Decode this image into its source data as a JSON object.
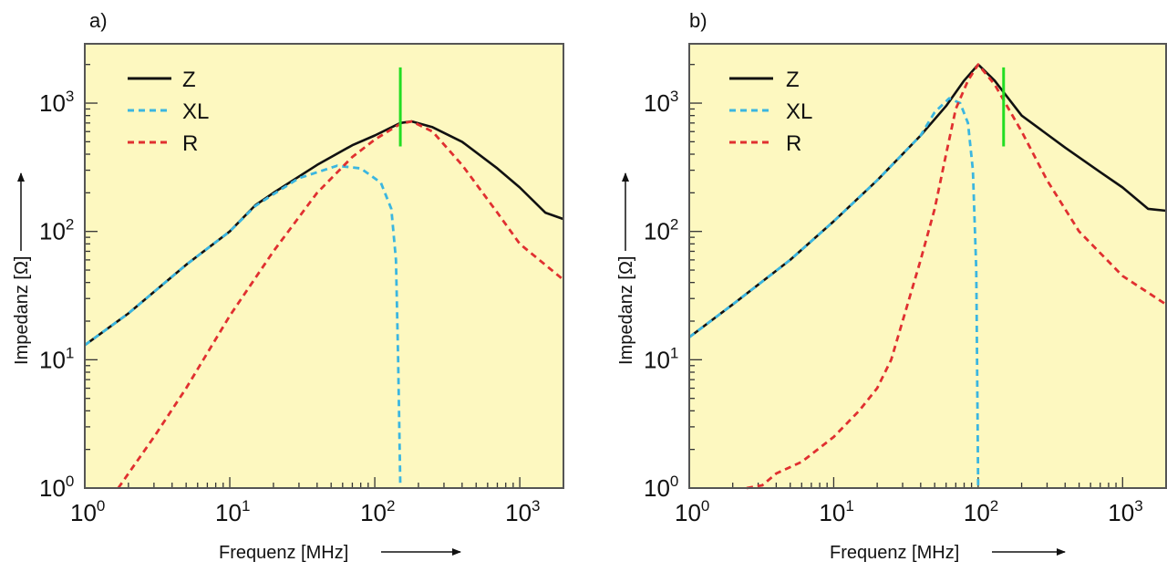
{
  "chart_data": [
    {
      "type": "line",
      "panel_label": "a)",
      "title": "",
      "xlabel": "Frequenz [MHz]",
      "ylabel": "Impedanz [Ω]",
      "xscale": "log",
      "yscale": "log",
      "xlim": [
        1,
        2000
      ],
      "ylim": [
        1,
        2900
      ],
      "xticks": [
        1,
        10,
        100,
        1000
      ],
      "xtick_labels": [
        {
          "base": "10",
          "exp": "0"
        },
        {
          "base": "10",
          "exp": "1"
        },
        {
          "base": "10",
          "exp": "2"
        },
        {
          "base": "10",
          "exp": "3"
        }
      ],
      "yticks": [
        1,
        10,
        100,
        1000
      ],
      "ytick_labels": [
        {
          "base": "10",
          "exp": "0"
        },
        {
          "base": "10",
          "exp": "1"
        },
        {
          "base": "10",
          "exp": "2"
        },
        {
          "base": "10",
          "exp": "3"
        }
      ],
      "background": "#fdf8c0",
      "legend": {
        "position": "top-left",
        "entries": [
          "Z",
          "XL",
          "R"
        ]
      },
      "series": [
        {
          "name": "Z",
          "style": "solid",
          "color": "#111111",
          "x": [
            1,
            2,
            5,
            10,
            15,
            20,
            40,
            70,
            100,
            150,
            180,
            250,
            400,
            700,
            1000,
            1500,
            2000
          ],
          "y": [
            13,
            23,
            55,
            100,
            160,
            200,
            330,
            470,
            560,
            700,
            720,
            650,
            500,
            310,
            220,
            140,
            125
          ]
        },
        {
          "name": "XL",
          "style": "dashed",
          "color": "#3bb6e0",
          "x": [
            1,
            2,
            5,
            10,
            15,
            20,
            30,
            55,
            80,
            110,
            130,
            140,
            145,
            150
          ],
          "y": [
            13,
            23,
            55,
            100,
            158,
            195,
            260,
            325,
            310,
            240,
            150,
            60,
            10,
            1
          ]
        },
        {
          "name": "R",
          "style": "dashed",
          "color": "#e03030",
          "x": [
            1.7,
            2,
            3,
            5,
            10,
            20,
            40,
            70,
            100,
            150,
            180,
            250,
            400,
            700,
            1000,
            2000
          ],
          "y": [
            1,
            1.3,
            2.5,
            6,
            22,
            70,
            200,
            380,
            520,
            690,
            720,
            600,
            330,
            140,
            80,
            42
          ]
        }
      ],
      "annotations": [
        {
          "type": "vertical-marker",
          "color": "#22dd22",
          "x": 150,
          "y_range": [
            460,
            1900
          ]
        }
      ]
    },
    {
      "type": "line",
      "panel_label": "b)",
      "title": "",
      "xlabel": "Frequenz [MHz]",
      "ylabel": "Impedanz [Ω]",
      "xscale": "log",
      "yscale": "log",
      "xlim": [
        1,
        2000
      ],
      "ylim": [
        1,
        2900
      ],
      "xticks": [
        1,
        10,
        100,
        1000
      ],
      "xtick_labels": [
        {
          "base": "10",
          "exp": "0"
        },
        {
          "base": "10",
          "exp": "1"
        },
        {
          "base": "10",
          "exp": "2"
        },
        {
          "base": "10",
          "exp": "3"
        }
      ],
      "yticks": [
        1,
        10,
        100,
        1000
      ],
      "ytick_labels": [
        {
          "base": "10",
          "exp": "0"
        },
        {
          "base": "10",
          "exp": "1"
        },
        {
          "base": "10",
          "exp": "2"
        },
        {
          "base": "10",
          "exp": "3"
        }
      ],
      "background": "#fdf8c0",
      "legend": {
        "position": "top-left",
        "entries": [
          "Z",
          "XL",
          "R"
        ]
      },
      "series": [
        {
          "name": "Z",
          "style": "solid",
          "color": "#111111",
          "x": [
            1,
            2,
            5,
            10,
            20,
            40,
            60,
            80,
            100,
            130,
            200,
            400,
            700,
            1000,
            1500,
            2000
          ],
          "y": [
            15,
            27,
            60,
            120,
            250,
            560,
            950,
            1500,
            2000,
            1500,
            800,
            450,
            290,
            220,
            150,
            145
          ]
        },
        {
          "name": "XL",
          "style": "dashed",
          "color": "#3bb6e0",
          "x": [
            1,
            2,
            5,
            10,
            20,
            40,
            50,
            63,
            75,
            85,
            92,
            97,
            100
          ],
          "y": [
            15,
            27,
            60,
            120,
            250,
            560,
            850,
            1090,
            1000,
            700,
            300,
            50,
            1
          ]
        },
        {
          "name": "R",
          "style": "dashed",
          "color": "#e03030",
          "x": [
            2.5,
            3.2,
            4,
            6,
            10,
            15,
            20,
            25,
            30,
            40,
            50,
            60,
            70,
            85,
            100,
            130,
            200,
            300,
            500,
            1000,
            2000
          ],
          "y": [
            1,
            1.05,
            1.3,
            1.6,
            2.5,
            4,
            6,
            10,
            20,
            60,
            150,
            400,
            900,
            1500,
            2000,
            1400,
            600,
            250,
            100,
            45,
            27
          ]
        }
      ],
      "annotations": [
        {
          "type": "vertical-marker",
          "color": "#22dd22",
          "x": 150,
          "y_range": [
            460,
            1900
          ]
        }
      ]
    }
  ]
}
